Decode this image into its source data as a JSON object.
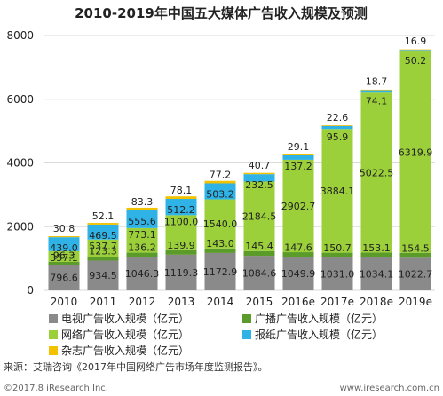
{
  "chart_data": {
    "type": "bar",
    "stacked": true,
    "title": "2010-2019年中国五大媒体广告收入规模及预测",
    "categories": [
      "2010",
      "2011",
      "2012",
      "2013",
      "2014",
      "2015",
      "2016e",
      "2017e",
      "2018e",
      "2019e"
    ],
    "ylim": [
      0,
      8000
    ],
    "yticks": [
      0,
      2000,
      4000,
      6000,
      8000
    ],
    "grid": true,
    "legend_position": "bottom",
    "series": [
      {
        "name": "电视广告收入规模（亿元）",
        "color": "#8a8a8a",
        "values": [
          796.6,
          934.5,
          1046.3,
          1119.3,
          1172.9,
          1084.6,
          1049.9,
          1031.0,
          1034.1,
          1022.7
        ],
        "labels": [
          "796.6",
          "934.5",
          "1046.3",
          "1119.3",
          "1172.9",
          "1084.6",
          "1049.9",
          "1031.0",
          "1034.1",
          "1022.7"
        ]
      },
      {
        "name": "广播广告收入规模（亿元）",
        "color": "#5a9b2a",
        "values": [
          96.3,
          123.3,
          136.2,
          139.9,
          143.0,
          145.4,
          147.6,
          150.7,
          153.1,
          154.5
        ],
        "labels": [
          "96.3",
          "123.3",
          "136.2",
          "139.9",
          "143.0",
          "145.4",
          "147.6",
          "150.7",
          "153.1",
          "154.5"
        ]
      },
      {
        "name": "网络广告收入规模（亿元）",
        "color": "#9bd03a",
        "values": [
          337.1,
          537.7,
          773.1,
          1100.0,
          1540.0,
          2184.5,
          2902.7,
          3884.1,
          5022.5,
          6319.9
        ],
        "labels": [
          "337.1",
          "537.7",
          "773.1",
          "1100.0",
          "1540.0",
          "2184.5",
          "2902.7",
          "3884.1",
          "5022.5",
          "6319.9"
        ]
      },
      {
        "name": "报纸广告收入规模（亿元）",
        "color": "#2fb3e6",
        "values": [
          439.0,
          469.5,
          555.6,
          512.2,
          503.2,
          232.5,
          137.2,
          95.9,
          74.1,
          50.2
        ],
        "labels": [
          "439.0",
          "469.5",
          "555.6",
          "512.2",
          "503.2",
          "232.5",
          "137.2",
          "95.9",
          "74.1",
          "50.2"
        ]
      },
      {
        "name": "杂志广告收入规模（亿元）",
        "color": "#f2c200",
        "values": [
          30.8,
          52.1,
          83.3,
          78.1,
          77.2,
          40.7,
          29.1,
          22.6,
          18.7,
          16.9
        ],
        "labels": [
          "30.8",
          "52.1",
          "83.3",
          "78.1",
          "77.2",
          "40.7",
          "29.1",
          "22.6",
          "18.7",
          "16.9"
        ]
      }
    ]
  },
  "source_text": "来源：艾瑞咨询《2017年中国网络广告市场年度监测报告》。",
  "footer_left": "©2017.8 iResearch Inc.",
  "footer_right": "www.iresearch.com.cn"
}
